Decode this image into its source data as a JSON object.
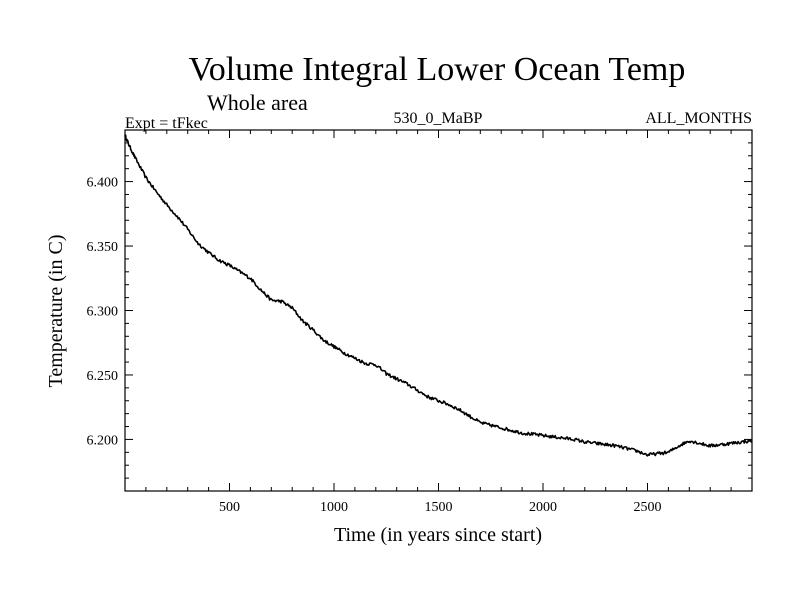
{
  "chart_data": {
    "type": "line",
    "title": "Volume Integral Lower Ocean Temp",
    "subtitle": "Whole area",
    "left_label": "Expt = tFkec",
    "center_label": "530_0_MaBP",
    "right_label": "ALL_MONTHS",
    "xlabel": "Time (in years since start)",
    "ylabel": "Temperature (in C)",
    "xlim": [
      0,
      3000
    ],
    "ylim": [
      6.16,
      6.44
    ],
    "x_ticks": [
      500,
      1000,
      1500,
      2000,
      2500
    ],
    "x_tick_labels": [
      "500",
      "1000",
      "1500",
      "2000",
      "2500"
    ],
    "y_ticks": [
      6.2,
      6.25,
      6.3,
      6.35,
      6.4
    ],
    "y_tick_labels": [
      "6.200",
      "6.250",
      "6.300",
      "6.350",
      "6.400"
    ],
    "grid": false,
    "line_color": "#000000",
    "series": [
      {
        "x": [
          0,
          20,
          50,
          100,
          150,
          200,
          250,
          300,
          350,
          400,
          450,
          500,
          550,
          600,
          650,
          700,
          750,
          800,
          850,
          900,
          950,
          1000,
          1050,
          1100,
          1150,
          1200,
          1250,
          1300,
          1350,
          1400,
          1450,
          1500,
          1550,
          1600,
          1650,
          1700,
          1750,
          1800,
          1850,
          1900,
          1950,
          2000,
          2050,
          2100,
          2150,
          2200,
          2250,
          2300,
          2350,
          2400,
          2450,
          2500,
          2550,
          2600,
          2650,
          2700,
          2750,
          2800,
          2850,
          2900,
          2950,
          3000
        ],
        "values": [
          6.436,
          6.428,
          6.418,
          6.403,
          6.392,
          6.382,
          6.373,
          6.363,
          6.352,
          6.345,
          6.339,
          6.335,
          6.33,
          6.325,
          6.316,
          6.308,
          6.307,
          6.302,
          6.292,
          6.285,
          6.277,
          6.272,
          6.267,
          6.263,
          6.259,
          6.258,
          6.251,
          6.247,
          6.243,
          6.238,
          6.233,
          6.23,
          6.227,
          6.223,
          6.218,
          6.213,
          6.211,
          6.209,
          6.207,
          6.205,
          6.204,
          6.203,
          6.202,
          6.201,
          6.2,
          6.198,
          6.197,
          6.196,
          6.195,
          6.193,
          6.191,
          6.188,
          6.189,
          6.19,
          6.195,
          6.199,
          6.197,
          6.195,
          6.196,
          6.197,
          6.198,
          6.199
        ]
      }
    ]
  }
}
